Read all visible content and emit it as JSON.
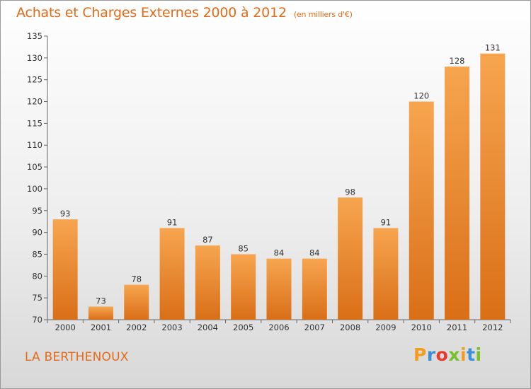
{
  "title": "Achats et Charges Externes 2000 à 2012",
  "subtitle": "(en milliers d'€)",
  "place_name": "LA BERTHENOUX",
  "brand": {
    "letters": [
      "P",
      "r",
      "o",
      "x",
      "i",
      "t",
      "i"
    ],
    "colors": [
      "#f39c1e",
      "#3b8fd6",
      "#e63a2e",
      "#79bf2b",
      "#f39c1e",
      "#3b8fd6",
      "#79bf2b"
    ]
  },
  "colors": {
    "title": "#e66a17",
    "bar_light": "#f7a550",
    "bar_dark": "#d96f17"
  },
  "chart_data": {
    "type": "bar",
    "categories": [
      "2000",
      "2001",
      "2002",
      "2003",
      "2004",
      "2005",
      "2006",
      "2007",
      "2008",
      "2009",
      "2010",
      "2011",
      "2012"
    ],
    "values": [
      93,
      73,
      78,
      91,
      87,
      85,
      84,
      84,
      98,
      91,
      120,
      128,
      131
    ],
    "ylim": [
      70,
      135
    ],
    "yticks": [
      70,
      75,
      80,
      85,
      90,
      95,
      100,
      105,
      110,
      115,
      120,
      125,
      130,
      135
    ],
    "grid": false,
    "data_labels": true
  }
}
